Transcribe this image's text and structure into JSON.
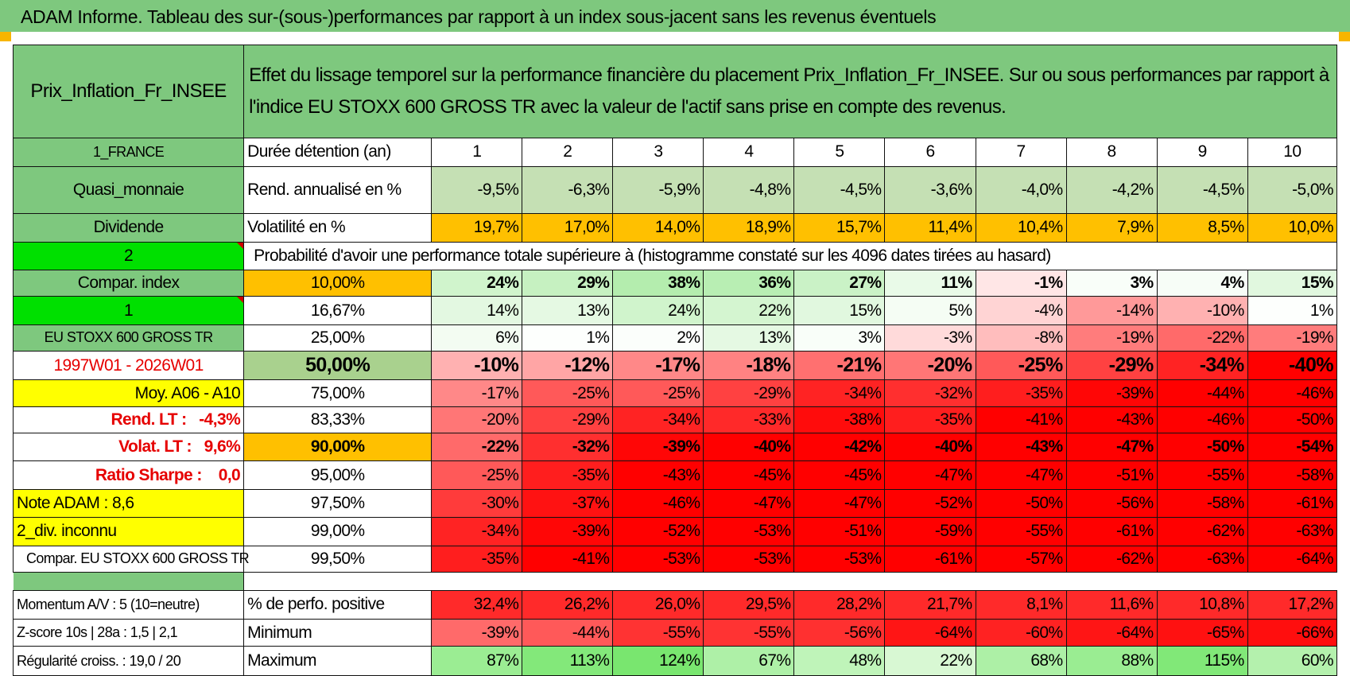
{
  "title": "ADAM Informe. Tableau des sur-(sous-)performances par rapport à un index sous-jacent sans les revenus éventuels",
  "asset_name": "Prix_Inflation_Fr_INSEE",
  "header_text": "Effet du lissage temporel sur la performance financière du placement Prix_Inflation_Fr_INSEE. Sur ou sous performances par rapport à l'indice EU STOXX 600 GROSS TR avec la valeur de l'actif sans prise en compte des revenus.",
  "sidebar": {
    "country": "1_FRANCE",
    "category": "Quasi_monnaie",
    "type": "Dividende",
    "choice1": "2",
    "compar_label": "Compar. index",
    "choice2": "1",
    "index_name": "EU STOXX 600 GROSS TR",
    "period": "1997W01 - 2026W01",
    "moy": "Moy. A06 - A10",
    "rend_lt_label": "Rend. LT :",
    "rend_lt_value": "-4,3%",
    "volat_lt_label": "Volat. LT :",
    "volat_lt_value": "9,6%",
    "sharpe_label": "Ratio Sharpe :",
    "sharpe_value": "0,0",
    "note": "Note ADAM : 8,6",
    "div": "2_div. inconnu",
    "compar_full": "Compar. EU STOXX 600 GROSS TR"
  },
  "labels": {
    "duree": "Durée détention (an)",
    "rend": "Rend. annualisé en %",
    "vol": "Volatilité en %",
    "proba": "Probabilité d'avoir une performance totale supérieure à (histogramme constaté sur les 4096 dates tirées au hasard)",
    "pos": "% de perfo. positive",
    "min": "Minimum",
    "max": "Maximum"
  },
  "years": [
    "1",
    "2",
    "3",
    "4",
    "5",
    "6",
    "7",
    "8",
    "9",
    "10"
  ],
  "rend": [
    "-9,5%",
    "-6,3%",
    "-5,9%",
    "-4,8%",
    "-4,5%",
    "-3,6%",
    "-4,0%",
    "-4,2%",
    "-4,5%",
    "-5,0%"
  ],
  "vol": [
    "19,7%",
    "17,0%",
    "14,0%",
    "18,9%",
    "15,7%",
    "11,4%",
    "10,4%",
    "7,9%",
    "8,5%",
    "10,0%"
  ],
  "percentile_rows": [
    {
      "pct": "10,00%",
      "values": [
        "24%",
        "29%",
        "38%",
        "36%",
        "27%",
        "11%",
        "-1%",
        "3%",
        "4%",
        "15%"
      ]
    },
    {
      "pct": "16,67%",
      "values": [
        "14%",
        "13%",
        "24%",
        "22%",
        "15%",
        "5%",
        "-4%",
        "-14%",
        "-10%",
        "1%"
      ]
    },
    {
      "pct": "25,00%",
      "values": [
        "6%",
        "1%",
        "2%",
        "13%",
        "3%",
        "-3%",
        "-8%",
        "-19%",
        "-22%",
        "-19%"
      ]
    },
    {
      "pct": "50,00%",
      "values": [
        "-10%",
        "-12%",
        "-17%",
        "-18%",
        "-21%",
        "-20%",
        "-25%",
        "-29%",
        "-34%",
        "-40%"
      ]
    },
    {
      "pct": "75,00%",
      "values": [
        "-17%",
        "-25%",
        "-25%",
        "-29%",
        "-34%",
        "-32%",
        "-35%",
        "-39%",
        "-44%",
        "-46%"
      ]
    },
    {
      "pct": "83,33%",
      "values": [
        "-20%",
        "-29%",
        "-34%",
        "-33%",
        "-38%",
        "-35%",
        "-41%",
        "-43%",
        "-46%",
        "-50%"
      ]
    },
    {
      "pct": "90,00%",
      "values": [
        "-22%",
        "-32%",
        "-39%",
        "-40%",
        "-42%",
        "-40%",
        "-43%",
        "-47%",
        "-50%",
        "-54%"
      ]
    },
    {
      "pct": "95,00%",
      "values": [
        "-25%",
        "-35%",
        "-43%",
        "-45%",
        "-45%",
        "-47%",
        "-47%",
        "-51%",
        "-55%",
        "-58%"
      ]
    },
    {
      "pct": "97,50%",
      "values": [
        "-30%",
        "-37%",
        "-46%",
        "-47%",
        "-47%",
        "-52%",
        "-50%",
        "-56%",
        "-58%",
        "-61%"
      ]
    },
    {
      "pct": "99,00%",
      "values": [
        "-34%",
        "-39%",
        "-52%",
        "-53%",
        "-51%",
        "-59%",
        "-55%",
        "-61%",
        "-62%",
        "-63%"
      ]
    },
    {
      "pct": "99,50%",
      "values": [
        "-35%",
        "-41%",
        "-53%",
        "-53%",
        "-53%",
        "-61%",
        "-57%",
        "-62%",
        "-63%",
        "-64%"
      ]
    }
  ],
  "bottom": {
    "momentum": "Momentum A/V : 5 (10=neutre)",
    "zscore": "Z-score 10s | 28a : 1,5 | 2,1",
    "regularite": "Régularité croiss. : 19,0 / 20",
    "pos": [
      "32,4%",
      "26,2%",
      "26,0%",
      "29,5%",
      "28,2%",
      "21,7%",
      "8,1%",
      "11,6%",
      "10,8%",
      "17,2%"
    ],
    "min": [
      "-39%",
      "-44%",
      "-55%",
      "-55%",
      "-56%",
      "-64%",
      "-60%",
      "-64%",
      "-65%",
      "-66%"
    ],
    "max": [
      "87%",
      "113%",
      "124%",
      "67%",
      "48%",
      "22%",
      "68%",
      "88%",
      "115%",
      "60%"
    ]
  },
  "colors": {
    "header_green": "#7ec87e",
    "light_green": "#a9d18e",
    "bright_green": "#00e000",
    "yellow": "#ffff00",
    "orange": "#ffc000",
    "red_text": "#e60000",
    "pos_red": "#ff3a3a"
  }
}
